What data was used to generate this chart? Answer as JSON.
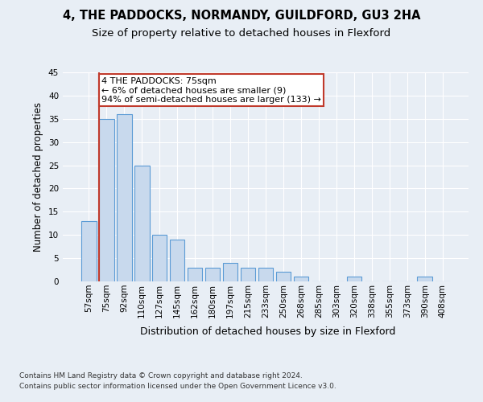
{
  "title1": "4, THE PADDOCKS, NORMANDY, GUILDFORD, GU3 2HA",
  "title2": "Size of property relative to detached houses in Flexford",
  "xlabel": "Distribution of detached houses by size in Flexford",
  "ylabel": "Number of detached properties",
  "categories": [
    "57sqm",
    "75sqm",
    "92sqm",
    "110sqm",
    "127sqm",
    "145sqm",
    "162sqm",
    "180sqm",
    "197sqm",
    "215sqm",
    "233sqm",
    "250sqm",
    "268sqm",
    "285sqm",
    "303sqm",
    "320sqm",
    "338sqm",
    "355sqm",
    "373sqm",
    "390sqm",
    "408sqm"
  ],
  "values": [
    13,
    35,
    36,
    25,
    10,
    9,
    3,
    3,
    4,
    3,
    3,
    2,
    1,
    0,
    0,
    1,
    0,
    0,
    0,
    1,
    0
  ],
  "bar_color": "#c8d9ed",
  "bar_edge_color": "#5b9bd5",
  "highlight_index": 1,
  "highlight_line_color": "#c0392b",
  "annotation_line1": "4 THE PADDOCKS: 75sqm",
  "annotation_line2": "← 6% of detached houses are smaller (9)",
  "annotation_line3": "94% of semi-detached houses are larger (133) →",
  "annotation_box_color": "#ffffff",
  "annotation_box_edge": "#c0392b",
  "ylim": [
    0,
    45
  ],
  "yticks": [
    0,
    5,
    10,
    15,
    20,
    25,
    30,
    35,
    40,
    45
  ],
  "background_color": "#e8eef5",
  "plot_bg_color": "#e8eef5",
  "footer_line1": "Contains HM Land Registry data © Crown copyright and database right 2024.",
  "footer_line2": "Contains public sector information licensed under the Open Government Licence v3.0.",
  "title1_fontsize": 10.5,
  "title2_fontsize": 9.5,
  "xlabel_fontsize": 9,
  "ylabel_fontsize": 8.5,
  "tick_fontsize": 7.5,
  "footer_fontsize": 6.5,
  "annotation_fontsize": 8
}
